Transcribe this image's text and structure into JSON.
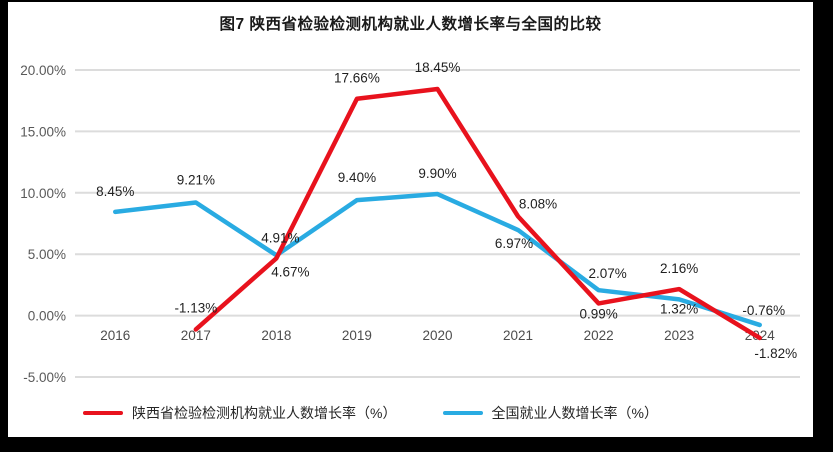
{
  "chart_data": {
    "type": "line",
    "title": "图7 陕西省检验检测机构就业人数增长率与全国的比较",
    "categories": [
      "2016",
      "2017",
      "2018",
      "2019",
      "2020",
      "2021",
      "2022",
      "2023",
      "2024"
    ],
    "ylim": [
      -5,
      20
    ],
    "ytick_values": [
      20,
      15,
      10,
      5,
      0,
      -5
    ],
    "ytick_labels": [
      "20.00%",
      "15.00%",
      "10.00%",
      "5.00%",
      "0.00%",
      "-5.00%"
    ],
    "grid": true,
    "legend_position": "bottom",
    "colors": {
      "grid": "#dcdcdc",
      "axis_text": "#595959",
      "label_text": "#1f1f1f"
    },
    "series": [
      {
        "name": "陕西省检验检测机构就业人数增长率（%）",
        "color": "#e8121d",
        "values": [
          null,
          -1.13,
          4.67,
          17.66,
          18.45,
          8.08,
          0.99,
          2.16,
          -1.82
        ],
        "labels": [
          "",
          "-1.13%",
          "4.67%",
          "17.66%",
          "18.45%",
          "8.08%",
          "0.99%",
          "2.16%",
          "-1.82%"
        ],
        "label_offsets": [
          [
            0,
            0
          ],
          [
            0,
            -17
          ],
          [
            14,
            18
          ],
          [
            0,
            -16
          ],
          [
            0,
            -17
          ],
          [
            20,
            -8
          ],
          [
            0,
            15
          ],
          [
            0,
            -16
          ],
          [
            16,
            20
          ]
        ]
      },
      {
        "name": "全国就业人数增长率（%）",
        "color": "#29abe2",
        "values": [
          8.45,
          9.21,
          4.91,
          9.4,
          9.9,
          6.97,
          2.07,
          1.32,
          -0.76
        ],
        "labels": [
          "8.45%",
          "9.21%",
          "4.91%",
          "9.40%",
          "9.90%",
          "6.97%",
          "2.07%",
          "1.32%",
          "-0.76%"
        ],
        "label_offsets": [
          [
            0,
            -16
          ],
          [
            0,
            -18
          ],
          [
            4,
            -13
          ],
          [
            0,
            -18
          ],
          [
            0,
            -16
          ],
          [
            -4,
            18
          ],
          [
            9,
            -12
          ],
          [
            0,
            14
          ],
          [
            4,
            -10
          ]
        ]
      }
    ]
  }
}
